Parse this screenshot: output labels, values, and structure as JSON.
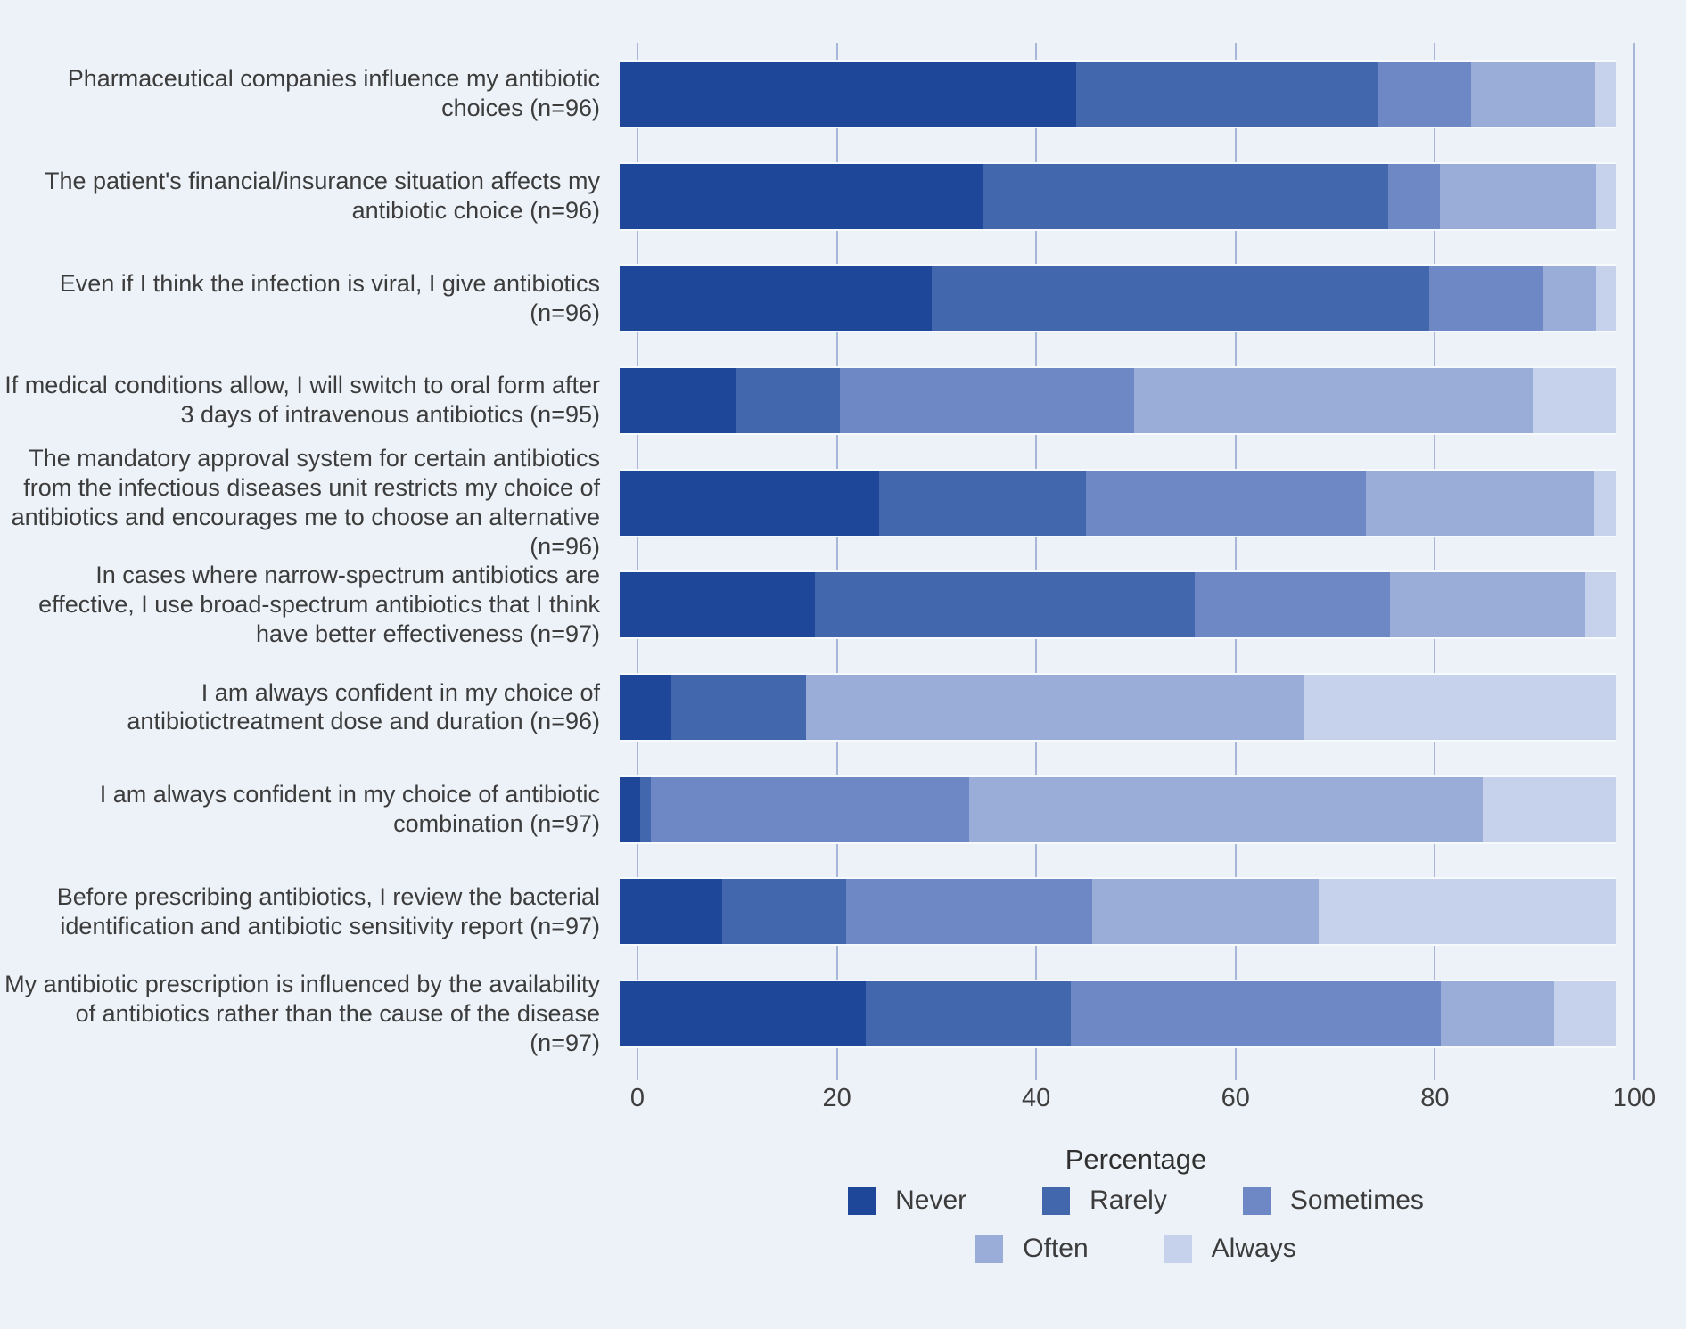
{
  "style": {
    "background": "#edf2f8",
    "gridline_color": "#a8b6d9",
    "text_color": "#3c3c3c"
  },
  "chart_data": {
    "type": "bar",
    "variant": "horizontal-stacked",
    "title": "",
    "xlabel": "Percentage",
    "ylabel": "",
    "xlim": [
      0,
      100
    ],
    "x_ticks": [
      0,
      20,
      40,
      60,
      80,
      100
    ],
    "grid": true,
    "legend_position": "bottom",
    "legend_rows": [
      [
        "Never",
        "Rarely",
        "Sometimes"
      ],
      [
        "Often",
        "Always"
      ]
    ],
    "categories": [
      "Pharmaceutical companies influence my antibiotic choices (n=96)",
      "The patient's financial/insurance situation affects my antibiotic choice (n=96)",
      "Even if I think the infection is viral, I give antibiotics (n=96)",
      "If medical conditions allow, I will switch to oral form after 3 days of intravenous antibiotics (n=95)",
      "The mandatory approval system for certain antibiotics from the infectious diseases unit restricts my choice of antibiotics and encourages me to choose an alternative (n=96)",
      "In cases where narrow-spectrum antibiotics are effective, I use broad-spectrum antibiotics that I think have better effectiveness (n=97)",
      "I am always confident in my choice of antibiotictreatment dose and duration (n=96)",
      "I am always confident in my choice of antibiotic combination (n=97)",
      "Before prescribing antibiotics, I review the bacterial identification and antibiotic sensitivity report (n=97)",
      "My antibiotic prescription is influenced by the availability of antibiotics rather than the cause of the disease (n=97)"
    ],
    "series": [
      {
        "name": "Never",
        "color": "#1e4799",
        "values": [
          45.8,
          36.5,
          31.3,
          11.6,
          26.0,
          19.6,
          5.2,
          2.1,
          10.3,
          24.7
        ]
      },
      {
        "name": "Rarely",
        "color": "#4267ac",
        "values": [
          30.2,
          40.6,
          50.0,
          10.5,
          20.8,
          38.1,
          13.5,
          1.0,
          12.4,
          20.6
        ]
      },
      {
        "name": "Sometimes",
        "color": "#6d88c4",
        "values": [
          9.4,
          5.2,
          11.5,
          29.5,
          28.1,
          19.6,
          0.0,
          32.0,
          24.7,
          37.1
        ]
      },
      {
        "name": "Often",
        "color": "#9aacd8",
        "values": [
          12.5,
          15.6,
          5.2,
          40.0,
          22.9,
          19.6,
          50.0,
          51.5,
          22.7,
          11.3
        ]
      },
      {
        "name": "Always",
        "color": "#c6d1ec",
        "values": [
          2.1,
          2.1,
          2.1,
          8.4,
          2.1,
          3.1,
          31.3,
          13.4,
          29.9,
          6.2
        ]
      }
    ]
  }
}
